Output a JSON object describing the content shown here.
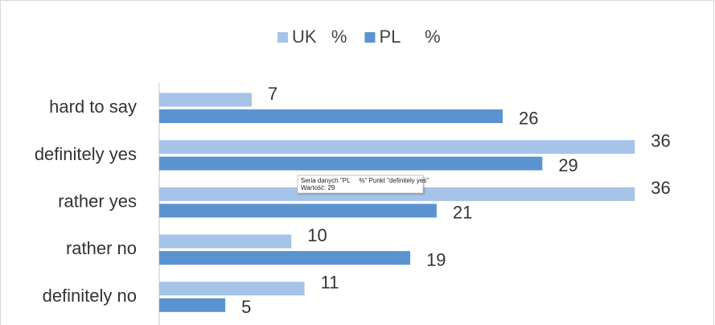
{
  "chart_data": {
    "type": "hbar",
    "categories": [
      "hard to say",
      "definitely yes",
      "rather yes",
      "rather no",
      "definitely no"
    ],
    "series": [
      {
        "name": "UK   %",
        "color": "#a6c3e8",
        "values": [
          7,
          36,
          36,
          10,
          11
        ]
      },
      {
        "name": "PL     %",
        "color": "#5b93d0",
        "values": [
          26,
          29,
          21,
          19,
          5
        ]
      }
    ],
    "xlim": [
      0,
      40
    ],
    "legend": "top",
    "tooltip": [
      "Seria danych \"PL     %\" Punkt \"definitely yes\"",
      "Wartość: 29"
    ]
  }
}
